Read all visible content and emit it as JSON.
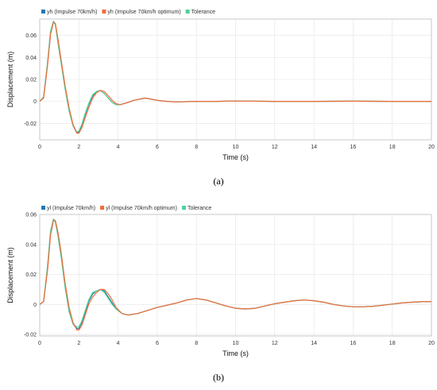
{
  "chart_data": [
    {
      "type": "line",
      "caption": "(a)",
      "xlabel": "Time (s)",
      "ylabel": "Displacement (m)",
      "xlim": [
        0,
        20
      ],
      "ylim": [
        -0.035,
        0.075
      ],
      "xticks": [
        "0",
        "2",
        "4",
        "6",
        "8",
        "10",
        "12",
        "14",
        "16",
        "18",
        "20"
      ],
      "yticks": [
        "0.06",
        "0.04",
        "0.02",
        "0",
        "-0.02"
      ],
      "legend_position": "top-left",
      "grid": true,
      "series": [
        {
          "name": "yh (Impulse 70km/h)",
          "color": "#1f77b4",
          "x": [
            0,
            0.2,
            0.4,
            0.55,
            0.7,
            0.8,
            0.95,
            1.1,
            1.3,
            1.5,
            1.7,
            1.9,
            2.0,
            2.15,
            2.3,
            2.5,
            2.7,
            2.9,
            3.1,
            3.3,
            3.5,
            3.7,
            3.9,
            4.1,
            4.3,
            4.5,
            4.8,
            5.1,
            5.4,
            5.7,
            6.0,
            6.5,
            7,
            8,
            9,
            10,
            12,
            14,
            16,
            18,
            20
          ],
          "y": [
            0,
            0.004,
            0.035,
            0.063,
            0.073,
            0.07,
            0.052,
            0.035,
            0.012,
            -0.008,
            -0.022,
            -0.029,
            -0.028,
            -0.022,
            -0.013,
            -0.003,
            0.005,
            0.009,
            0.01,
            0.007,
            0.003,
            -0.001,
            -0.003,
            -0.003,
            -0.002,
            -0.001,
            0.001,
            0.002,
            0.003,
            0.002,
            0.001,
            0,
            -0.0005,
            0,
            0,
            0.0003,
            0,
            0,
            0.0002,
            0,
            0
          ]
        },
        {
          "name": "yh (Impulse 70km/h optimum)",
          "color": "#f26b38",
          "x": [
            0,
            0.2,
            0.4,
            0.55,
            0.7,
            0.8,
            0.95,
            1.1,
            1.3,
            1.5,
            1.7,
            1.9,
            2.0,
            2.15,
            2.3,
            2.5,
            2.7,
            2.9,
            3.1,
            3.3,
            3.5,
            3.7,
            3.9,
            4.1,
            4.3,
            4.5,
            4.8,
            5.1,
            5.4,
            5.7,
            6.0,
            6.5,
            7,
            8,
            9,
            10,
            12,
            14,
            16,
            18,
            20
          ],
          "y": [
            0,
            0.003,
            0.033,
            0.061,
            0.072,
            0.071,
            0.055,
            0.037,
            0.014,
            -0.006,
            -0.021,
            -0.029,
            -0.029,
            -0.024,
            -0.016,
            -0.006,
            0.003,
            0.008,
            0.01,
            0.009,
            0.005,
            0.001,
            -0.002,
            -0.003,
            -0.002,
            -0.001,
            0.001,
            0.002,
            0.003,
            0.002,
            0.001,
            0,
            -0.0005,
            0,
            0,
            0.0003,
            0,
            0,
            0.0002,
            0,
            0
          ]
        },
        {
          "name": "Tolerance",
          "color": "#4cd39a",
          "x": [
            0,
            0.2,
            0.4,
            0.55,
            0.7,
            0.8,
            0.95,
            1.1,
            1.3,
            1.5,
            1.7,
            1.9,
            2.0,
            2.15,
            2.3,
            2.5,
            2.7,
            2.9,
            3.1,
            3.3,
            3.5,
            3.7,
            3.9,
            4.1,
            4.3,
            4.5,
            4.8,
            5.1,
            5.4,
            5.7,
            6.0,
            6.5,
            7,
            8,
            9,
            10,
            12,
            14,
            16,
            18,
            20
          ],
          "y": [
            0,
            0.004,
            0.036,
            0.064,
            0.073,
            0.07,
            0.051,
            0.034,
            0.011,
            -0.009,
            -0.022,
            -0.028,
            -0.027,
            -0.021,
            -0.012,
            -0.002,
            0.006,
            0.009,
            0.01,
            0.007,
            0.003,
            -0.001,
            -0.003,
            -0.003,
            -0.002,
            -0.001,
            0.001,
            0.002,
            0.003,
            0.002,
            0.001,
            0,
            -0.0005,
            0,
            0,
            0.0003,
            0,
            0,
            0.0002,
            0,
            0
          ]
        }
      ]
    },
    {
      "type": "line",
      "caption": "(b)",
      "xlabel": "Time (s)",
      "ylabel": "Displacement (m)",
      "xlim": [
        0,
        20
      ],
      "ylim": [
        -0.021,
        0.06
      ],
      "xticks": [
        "0",
        "2",
        "4",
        "6",
        "8",
        "10",
        "12",
        "14",
        "16",
        "18",
        "20"
      ],
      "yticks": [
        "0.06",
        "0.04",
        "0.02",
        "0",
        "-0.02"
      ],
      "legend_position": "top-left",
      "grid": true,
      "series": [
        {
          "name": "yl (Impulse 70km/h)",
          "color": "#1f77b4",
          "x": [
            0,
            0.2,
            0.4,
            0.55,
            0.7,
            0.8,
            0.95,
            1.1,
            1.3,
            1.5,
            1.7,
            1.9,
            2.0,
            2.15,
            2.3,
            2.5,
            2.7,
            2.9,
            3.1,
            3.3,
            3.5,
            3.7,
            3.9,
            4.2,
            4.5,
            5,
            5.5,
            6,
            6.5,
            7,
            7.5,
            8,
            8.5,
            9,
            9.5,
            10,
            10.5,
            11,
            11.5,
            12,
            12.5,
            13,
            13.5,
            14,
            14.5,
            15,
            15.5,
            16,
            16.5,
            17,
            17.5,
            18,
            18.5,
            19,
            19.5,
            20
          ],
          "y": [
            0,
            0.002,
            0.025,
            0.048,
            0.057,
            0.055,
            0.045,
            0.032,
            0.012,
            -0.004,
            -0.013,
            -0.016,
            -0.016,
            -0.012,
            -0.006,
            0.002,
            0.007,
            0.009,
            0.01,
            0.009,
            0.005,
            0.001,
            -0.003,
            -0.006,
            -0.007,
            -0.006,
            -0.004,
            -0.002,
            -0.0005,
            0.001,
            0.003,
            0.004,
            0.003,
            0.001,
            -0.001,
            -0.0025,
            -0.003,
            -0.0025,
            -0.001,
            0.0005,
            0.0015,
            0.0025,
            0.003,
            0.0025,
            0.0015,
            0,
            -0.001,
            -0.0015,
            -0.0015,
            -0.0012,
            -0.0005,
            0.0003,
            0.001,
            0.0015,
            0.0018,
            0.002
          ]
        },
        {
          "name": "yl (Impulse 70km/h optimum)",
          "color": "#f26b38",
          "x": [
            0,
            0.2,
            0.4,
            0.55,
            0.7,
            0.8,
            0.95,
            1.1,
            1.3,
            1.5,
            1.7,
            1.9,
            2.0,
            2.15,
            2.3,
            2.5,
            2.7,
            2.9,
            3.1,
            3.3,
            3.5,
            3.7,
            3.9,
            4.2,
            4.5,
            5,
            5.5,
            6,
            6.5,
            7,
            7.5,
            8,
            8.5,
            9,
            9.5,
            10,
            10.5,
            11,
            11.5,
            12,
            12.5,
            13,
            13.5,
            14,
            14.5,
            15,
            15.5,
            16,
            16.5,
            17,
            17.5,
            18,
            18.5,
            19,
            19.5,
            20
          ],
          "y": [
            0,
            0.002,
            0.023,
            0.046,
            0.056,
            0.056,
            0.047,
            0.034,
            0.014,
            -0.002,
            -0.012,
            -0.017,
            -0.017,
            -0.014,
            -0.008,
            0,
            0.005,
            0.008,
            0.01,
            0.01,
            0.007,
            0.003,
            -0.002,
            -0.006,
            -0.007,
            -0.006,
            -0.004,
            -0.002,
            -0.0005,
            0.001,
            0.003,
            0.004,
            0.003,
            0.001,
            -0.001,
            -0.0025,
            -0.003,
            -0.0025,
            -0.001,
            0.0005,
            0.0015,
            0.0025,
            0.003,
            0.0025,
            0.0015,
            0,
            -0.001,
            -0.0015,
            -0.0015,
            -0.0012,
            -0.0005,
            0.0003,
            0.001,
            0.0015,
            0.0018,
            0.002
          ]
        },
        {
          "name": "Tolerance",
          "color": "#4cd39a",
          "x": [
            0,
            0.2,
            0.4,
            0.55,
            0.7,
            0.8,
            0.95,
            1.1,
            1.3,
            1.5,
            1.7,
            1.9,
            2.0,
            2.15,
            2.3,
            2.5,
            2.7,
            2.9,
            3.1,
            3.3,
            3.5,
            3.7,
            3.9,
            4.2,
            4.5,
            5,
            5.5,
            6,
            6.5,
            7,
            7.5,
            8,
            8.5,
            9,
            9.5,
            10,
            10.5,
            11,
            11.5,
            12,
            12.5,
            13,
            13.5,
            14,
            14.5,
            15,
            15.5,
            16,
            16.5,
            17,
            17.5,
            18,
            18.5,
            19,
            19.5,
            20
          ],
          "y": [
            0,
            0.002,
            0.026,
            0.049,
            0.057,
            0.055,
            0.044,
            0.031,
            0.011,
            -0.005,
            -0.013,
            -0.015,
            -0.015,
            -0.011,
            -0.005,
            0.003,
            0.008,
            0.009,
            0.01,
            0.008,
            0.004,
            0,
            -0.003,
            -0.006,
            -0.007,
            -0.006,
            -0.004,
            -0.002,
            -0.0005,
            0.001,
            0.003,
            0.004,
            0.003,
            0.001,
            -0.001,
            -0.0025,
            -0.003,
            -0.0025,
            -0.001,
            0.0005,
            0.0015,
            0.0025,
            0.003,
            0.0025,
            0.0015,
            0,
            -0.001,
            -0.0015,
            -0.0015,
            -0.0012,
            -0.0005,
            0.0003,
            0.001,
            0.0015,
            0.0018,
            0.002
          ]
        }
      ]
    }
  ]
}
